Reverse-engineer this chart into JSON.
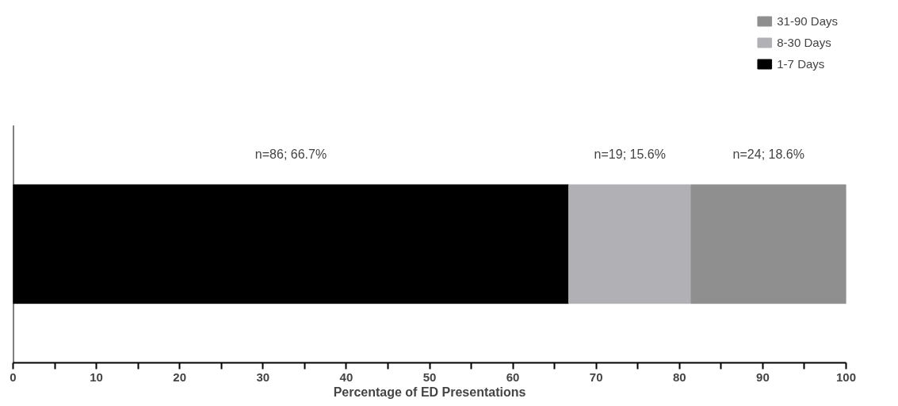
{
  "chart_data": {
    "type": "bar",
    "orientation": "horizontal",
    "stacked": true,
    "xlabel": "Percentage of ED Presentations",
    "categories": [
      null
    ],
    "series": [
      {
        "name": "1-7 Days",
        "color": "#000000",
        "values": [
          66.7
        ]
      },
      {
        "name": "8-30 Days",
        "color": "#b1b1b5",
        "values": [
          14.7
        ]
      },
      {
        "name": "31-90 Days",
        "color": "#8f8f8f",
        "values": [
          18.6
        ]
      }
    ],
    "annotations": [
      "n=86; 66.7%",
      "n=19; 15.6%",
      "n=24; 18.6%"
    ],
    "xlim": [
      0,
      100
    ],
    "xticks": [
      0,
      {
        "value": 5,
        "label": null
      },
      10,
      {
        "value": 15,
        "label": null
      },
      20,
      {
        "value": 25,
        "label": null
      },
      30,
      {
        "value": 35,
        "label": null
      },
      40,
      {
        "value": 45,
        "label": null
      },
      50,
      {
        "value": 55,
        "label": null
      },
      60,
      {
        "value": 65,
        "label": null
      },
      70,
      {
        "value": 75,
        "label": null
      },
      80,
      {
        "value": 85,
        "label": null
      },
      90,
      {
        "value": 95,
        "label": null
      },
      100
    ],
    "tick_labels": "x",
    "legend": "top right",
    "grid": false
  }
}
